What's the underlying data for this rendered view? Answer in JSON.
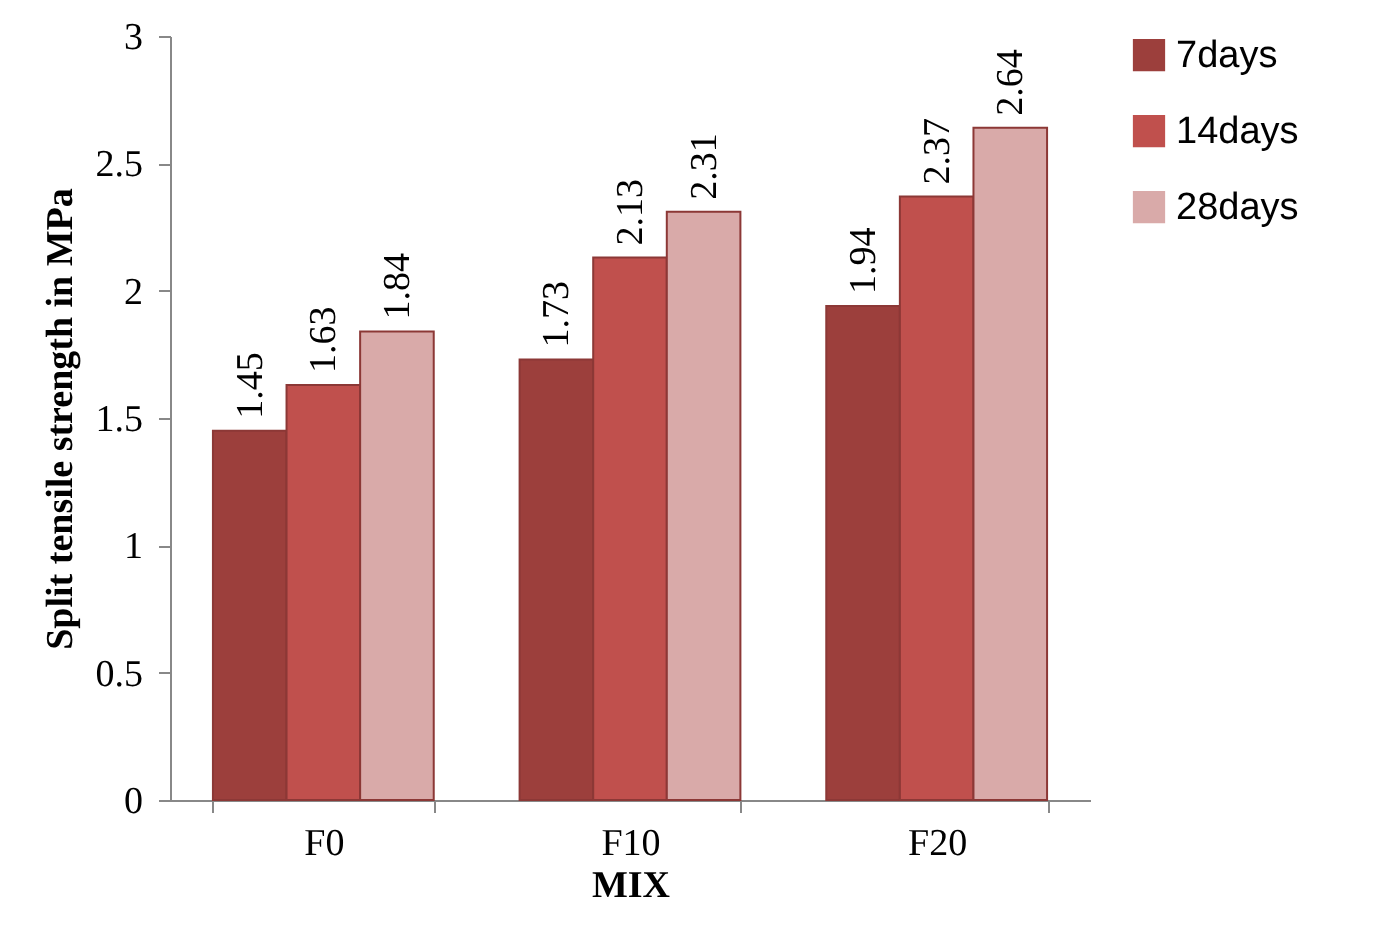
{
  "chart_data": {
    "type": "bar",
    "xlabel": "MIX",
    "ylabel": "Split tensile strength in MPa",
    "categories": [
      "F0",
      "F10",
      "F20"
    ],
    "series": [
      {
        "name": "7days",
        "color": "#9c3f3c",
        "values": [
          1.45,
          1.73,
          1.94
        ]
      },
      {
        "name": "14days",
        "color": "#c0504d",
        "values": [
          1.63,
          2.13,
          2.37
        ]
      },
      {
        "name": "28days",
        "color": "#d9aaa9",
        "values": [
          1.84,
          2.31,
          2.64
        ]
      }
    ],
    "ylim": [
      0,
      3
    ],
    "yticks": [
      0,
      0.5,
      1,
      1.5,
      2,
      2.5,
      3
    ],
    "data_labels": true,
    "legend": "right"
  }
}
